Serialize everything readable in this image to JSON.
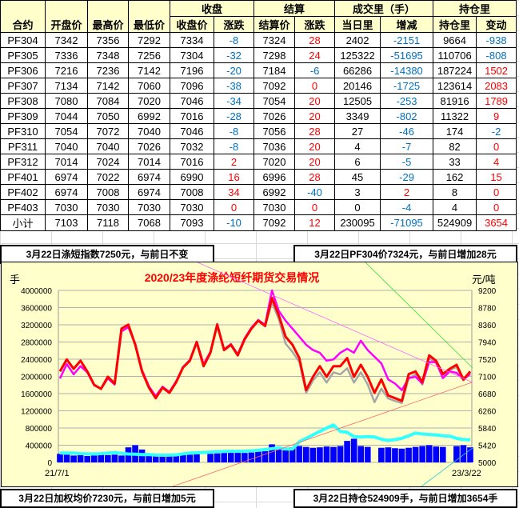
{
  "table": {
    "group_headers": {
      "close": "收盘",
      "settle": "结算",
      "volume": "成交里（手）",
      "oi": "持仓里"
    },
    "headers": [
      "合约",
      "开盘价",
      "最高价",
      "最低价",
      "收盘价",
      "涨跌",
      "结算价",
      "涨跌",
      "当日里",
      "增减",
      "持仓里",
      "变动"
    ],
    "rows": [
      [
        "PF304",
        "7342",
        "7356",
        "7292",
        "7334",
        "-8",
        "7324",
        "28",
        "2402",
        "-2151",
        "9664",
        "-938"
      ],
      [
        "PF305",
        "7336",
        "7348",
        "7256",
        "7304",
        "-32",
        "7298",
        "24",
        "125322",
        "-51695",
        "110706",
        "-808"
      ],
      [
        "PF306",
        "7216",
        "7236",
        "7142",
        "7196",
        "-20",
        "7184",
        "-6",
        "66286",
        "-14380",
        "187224",
        "1502"
      ],
      [
        "PF307",
        "7134",
        "7142",
        "7060",
        "7096",
        "-38",
        "7092",
        "0",
        "20146",
        "-1725",
        "123614",
        "2083"
      ],
      [
        "PF308",
        "7080",
        "7084",
        "7020",
        "7046",
        "-34",
        "7054",
        "20",
        "12505",
        "-253",
        "81916",
        "1789"
      ],
      [
        "PF309",
        "7044",
        "7050",
        "6992",
        "7016",
        "-28",
        "7026",
        "20",
        "3349",
        "-802",
        "11322",
        "9"
      ],
      [
        "PF310",
        "7054",
        "7072",
        "7040",
        "7046",
        "-8",
        "7056",
        "28",
        "27",
        "-46",
        "174",
        "-2"
      ],
      [
        "PF311",
        "7040",
        "7040",
        "7026",
        "7032",
        "-8",
        "7036",
        "20",
        "4",
        "-7",
        "82",
        "0"
      ],
      [
        "PF312",
        "7014",
        "7024",
        "7014",
        "7016",
        "2",
        "7020",
        "20",
        "6",
        "-5",
        "33",
        "4"
      ],
      [
        "PF401",
        "6974",
        "7022",
        "6974",
        "6990",
        "16",
        "6996",
        "28",
        "45",
        "-29",
        "162",
        "15"
      ],
      [
        "PF402",
        "6974",
        "7008",
        "6974",
        "7008",
        "34",
        "6992",
        "-40",
        "3",
        "2",
        "8",
        "0"
      ],
      [
        "PF403",
        "7030",
        "7030",
        "7030",
        "7030",
        "0",
        "7030",
        "0",
        "0",
        "-4",
        "4",
        "0"
      ],
      [
        "小计",
        "7103",
        "7118",
        "7068",
        "7093",
        "-10",
        "7092",
        "12",
        "230095",
        "-71095",
        "524909",
        "3654"
      ]
    ]
  },
  "summary": {
    "index": "3月22日涤短指数7250元，与前日不变",
    "pf304": "3月22日PF304价7324元，与前日增加28元",
    "weighted": "3月22日加权均价7230元，与前日增加5元",
    "oi": "3月22日持仓524909手，与前日增加3654手"
  },
  "colors": {
    "negative": "#0070c0",
    "positive": "#ff0000",
    "header_bg": "#ffffcc"
  },
  "chart_data": {
    "type": "line",
    "title": "2020/23年度涤纶短纤期货交易情况",
    "ylabel_left": "手",
    "ylabel_right": "元/吨",
    "x_start": "21/7/1",
    "x_end": "23/3/22",
    "ylim_left": [
      0,
      4000000
    ],
    "ylim_right": [
      5000,
      9200
    ],
    "left_ticks": [
      "0",
      "400000",
      "800000",
      "1200000",
      "1600000",
      "2000000",
      "2400000",
      "2800000",
      "3200000",
      "3600000",
      "4000000"
    ],
    "right_ticks": [
      "5000",
      "5420",
      "5840",
      "6260",
      "6680",
      "7100",
      "7520",
      "7940",
      "8360",
      "8780",
      "9200"
    ],
    "grid": true,
    "series": [
      {
        "axis": "right",
        "color": "#ff0000",
        "values": [
          7221,
          7515,
          7286,
          7482,
          7221,
          6894,
          6796,
          7090,
          6927,
          8266,
          8364,
          7874,
          7221,
          6829,
          6568,
          6829,
          6698,
          6960,
          7319,
          7482,
          7939,
          7351,
          7678,
          8364,
          7743,
          7874,
          7613,
          8005,
          8266,
          8462,
          8331,
          9017,
          8593,
          8070,
          7874,
          7547,
          6764,
          7090,
          7351,
          7090,
          7351,
          7351,
          7547,
          7090,
          7384,
          7090,
          6698,
          7025,
          6633,
          6568,
          6502,
          7156,
          7221,
          6960,
          7613,
          7482,
          7156,
          7286,
          7384,
          7025,
          7221
        ]
      },
      {
        "axis": "right",
        "color": "#ff00ff",
        "values": [
          7050,
          7400,
          7150,
          7350,
          7200,
          6880,
          6800,
          7050,
          6900,
          8200,
          8300,
          7900,
          7250,
          6860,
          6620,
          6850,
          6720,
          6980,
          7330,
          7500,
          7950,
          7400,
          7700,
          8380,
          7760,
          7890,
          7640,
          8030,
          8290,
          8480,
          8360,
          9200,
          8700,
          8462,
          8266,
          8070,
          7874,
          7743,
          7678,
          7482,
          7515,
          7678,
          7776,
          7678,
          7972,
          7743,
          7580,
          7417,
          7025,
          6927,
          6764,
          7058,
          7090,
          6927,
          7449,
          7449,
          7058,
          7221,
          7188,
          7025,
          7155
        ]
      },
      {
        "axis": "right",
        "color": "#a6a6a6",
        "values": [
          7221,
          7515,
          7286,
          7482,
          7221,
          6894,
          6796,
          7090,
          6927,
          8266,
          8364,
          7874,
          7221,
          6829,
          6568,
          6829,
          6698,
          6960,
          7319,
          7482,
          7939,
          7351,
          7678,
          8364,
          7743,
          7874,
          7613,
          8005,
          8266,
          8462,
          8331,
          8900,
          8500,
          7900,
          7700,
          7450,
          6700,
          7000,
          7200,
          6950,
          7200,
          7150,
          7300,
          6950,
          7200,
          6900,
          6470,
          6800,
          6560,
          6500,
          6450,
          7050,
          7150,
          6900,
          7550,
          7420,
          7100,
          7250,
          7330,
          7000,
          7200
        ]
      },
      {
        "axis": "left",
        "color": "#33ffff",
        "values": [
          218000,
          220000,
          215000,
          205000,
          200000,
          198000,
          205000,
          215000,
          230000,
          210000,
          195000,
          190000,
          180000,
          185000,
          170000,
          168000,
          170000,
          175000,
          200000,
          215000,
          225000,
          230000,
          240000,
          250000,
          255000,
          260000,
          258000,
          262000,
          270000,
          280000,
          300000,
          320000,
          340000,
          310000,
          311000,
          480000,
          560000,
          640000,
          720000,
          800000,
          871000,
          720000,
          700000,
          600000,
          590000,
          600000,
          590000,
          540000,
          510000,
          530000,
          560000,
          620000,
          680000,
          660000,
          650000,
          640000,
          620000,
          610000,
          560000,
          530000,
          525000
        ]
      },
      {
        "axis": "left",
        "type": "bar",
        "color": "#0000ff",
        "values": [
          200000,
          180000,
          160000,
          170000,
          150000,
          160000,
          190000,
          170000,
          180000,
          160000,
          350000,
          400000,
          300000,
          160000,
          150000,
          140000,
          150000,
          160000,
          170000,
          180000,
          190000,
          0,
          200000,
          210000,
          220000,
          230000,
          240000,
          220000,
          230000,
          250000,
          260000,
          420000,
          300000,
          280000,
          350000,
          380000,
          360000,
          340000,
          350000,
          370000,
          360000,
          380000,
          500000,
          550000,
          380000,
          360000,
          0,
          340000,
          350000,
          330000,
          320000,
          340000,
          360000,
          380000,
          400000,
          370000,
          360000,
          0,
          380000,
          400000,
          350000
        ]
      }
    ]
  }
}
